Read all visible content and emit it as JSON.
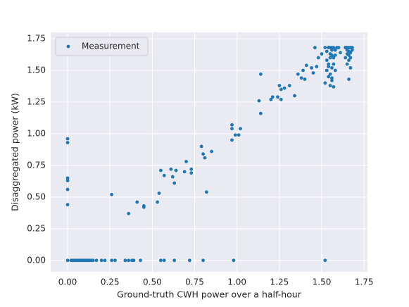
{
  "chart_data": {
    "type": "scatter",
    "xlabel": "Ground-truth CWH power over a half-hour",
    "ylabel": "Disaggregated power (kW)",
    "xlim": [
      -0.1,
      1.77
    ],
    "ylim": [
      -0.09,
      1.8
    ],
    "xticks": [
      {
        "value": 0,
        "label": "0.00"
      },
      {
        "value": 0.25,
        "label": "0.25"
      },
      {
        "value": 0.5,
        "label": "0.50"
      },
      {
        "value": 0.75,
        "label": "0.75"
      },
      {
        "value": 1,
        "label": "1.00"
      },
      {
        "value": 1.25,
        "label": "1.25"
      },
      {
        "value": 1.5,
        "label": "1.50"
      },
      {
        "value": 1.75,
        "label": "1.75"
      }
    ],
    "yticks": [
      {
        "value": 0,
        "label": "0.00"
      },
      {
        "value": 0.25,
        "label": "0.25"
      },
      {
        "value": 0.5,
        "label": "0.50"
      },
      {
        "value": 0.75,
        "label": "0.75"
      },
      {
        "value": 1,
        "label": "1.00"
      },
      {
        "value": 1.25,
        "label": "1.25"
      },
      {
        "value": 1.5,
        "label": "1.50"
      },
      {
        "value": 1.75,
        "label": "1.75"
      }
    ],
    "grid": true,
    "legend": "upper left",
    "series": [
      {
        "name": "Measurement",
        "color": "#1f77b4",
        "x": [
          0,
          0.02,
          0.03,
          0.04,
          0.05,
          0.06,
          0.07,
          0.08,
          0.09,
          0.1,
          0.11,
          0.12,
          0.13,
          0.14,
          0.15,
          0.17,
          0.2,
          0.22,
          0.26,
          0.28,
          0.34,
          0.36,
          0.38,
          0.39,
          0.43,
          0.55,
          0.57,
          0.63,
          0.72,
          0.8,
          0.98,
          1.52,
          0,
          0,
          0,
          0,
          0,
          0,
          0.26,
          0.36,
          0.41,
          0.45,
          0.45,
          0.53,
          0.54,
          0.55,
          0.57,
          0.61,
          0.62,
          0.63,
          0.64,
          0.69,
          0.7,
          0.73,
          0.73,
          0.79,
          0.8,
          0.81,
          0.82,
          0.85,
          0.97,
          0.97,
          0.97,
          0.99,
          1.01,
          1.02,
          1.13,
          1.14,
          1.14,
          1.2,
          1.21,
          1.24,
          1.25,
          1.26,
          1.26,
          1.28,
          1.31,
          1.34,
          1.36,
          1.38,
          1.39,
          1.4,
          1.41,
          1.44,
          1.45,
          1.46,
          1.47,
          1.48,
          1.5,
          1.52,
          1.52,
          1.53,
          1.53,
          1.54,
          1.54,
          1.54,
          1.55,
          1.55,
          1.55,
          1.55,
          1.56,
          1.56,
          1.56,
          1.56,
          1.57,
          1.57,
          1.57,
          1.58,
          1.58,
          1.59,
          1.53,
          1.55,
          1.56,
          1.57,
          1.54,
          1.56,
          1.58,
          1.6,
          1.61,
          1.64,
          1.64,
          1.65,
          1.65,
          1.65,
          1.66,
          1.66,
          1.66,
          1.66,
          1.67,
          1.67,
          1.67,
          1.68,
          1.68,
          1.65,
          1.66,
          1.67,
          1.64
        ],
        "values": [
          0,
          0,
          0,
          0,
          0,
          0,
          0,
          0,
          0,
          0,
          0,
          0,
          0,
          0,
          0,
          0,
          0,
          0,
          0,
          0,
          0,
          0,
          0,
          0,
          0,
          0,
          0,
          0,
          0,
          0,
          0,
          0,
          0.96,
          0.93,
          0.65,
          0.63,
          0.56,
          0.44,
          0.52,
          0.37,
          0.46,
          0.43,
          0.42,
          0.46,
          0.53,
          0.71,
          0.67,
          0.72,
          0.66,
          0.61,
          0.71,
          0.7,
          0.78,
          0.69,
          0.72,
          0.9,
          0.84,
          0.81,
          0.54,
          0.86,
          1.07,
          1.04,
          0.95,
          0.99,
          0.99,
          1.04,
          1.26,
          1.47,
          1.16,
          1.27,
          1.29,
          1.29,
          1.38,
          1.35,
          1.27,
          1.36,
          1.38,
          1.3,
          1.47,
          1.44,
          1.5,
          1.43,
          1.54,
          1.52,
          1.48,
          1.68,
          1.53,
          1.6,
          1.63,
          1.68,
          1.4,
          1.65,
          1.5,
          1.68,
          1.45,
          1.55,
          1.68,
          1.38,
          1.6,
          1.47,
          1.68,
          1.62,
          1.52,
          1.42,
          1.68,
          1.55,
          1.37,
          1.66,
          1.5,
          1.68,
          1.58,
          1.63,
          1.44,
          1.6,
          1.53,
          1.66,
          1.62,
          1.68,
          1.64,
          1.68,
          1.6,
          1.68,
          1.63,
          1.55,
          1.68,
          1.65,
          1.58,
          1.43,
          1.68,
          1.6,
          1.52,
          1.68,
          1.66,
          1.66,
          1.62,
          1.64,
          1.68
        ]
      }
    ]
  }
}
